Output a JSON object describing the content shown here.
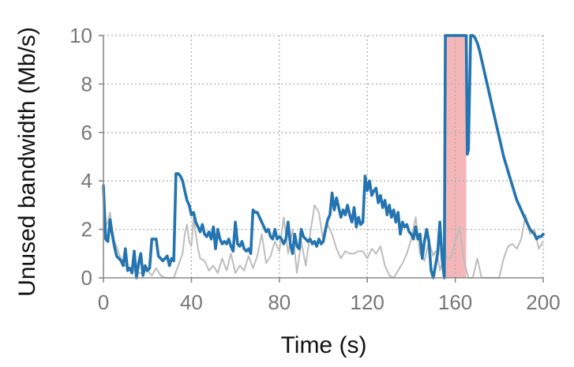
{
  "chart_data": {
    "type": "line",
    "xlabel": "Time (s)",
    "ylabel": "Unused bandwidth (Mb/s)",
    "xlim": [
      0,
      200
    ],
    "ylim": [
      0,
      10
    ],
    "xticks": [
      0,
      40,
      80,
      120,
      160,
      200
    ],
    "yticks": [
      0,
      2,
      4,
      6,
      8,
      10
    ],
    "xtick_labels": [
      "0",
      "40",
      "80",
      "120",
      "160",
      "200"
    ],
    "ytick_labels": [
      "0",
      "2",
      "4",
      "6",
      "8",
      "10"
    ],
    "grid": true,
    "highlight_span": {
      "x": [
        155,
        165
      ],
      "color": "#f4b6b8"
    },
    "colors": {
      "primary": "#2374b0",
      "secondary": "#bdbdbd"
    },
    "series": [
      {
        "color": "#bdbdbd",
        "x": [
          0,
          2,
          3,
          4,
          5,
          6,
          7,
          8,
          9,
          10,
          12,
          14,
          16,
          18,
          20,
          22,
          24,
          26,
          28,
          30,
          32,
          34,
          36,
          37,
          38,
          39,
          40,
          41,
          42,
          43,
          44,
          46,
          48,
          50,
          52,
          54,
          56,
          58,
          60,
          62,
          64,
          66,
          68,
          70,
          72,
          74,
          76,
          78,
          80,
          82,
          84,
          86,
          88,
          90,
          92,
          94,
          96,
          98,
          100,
          102,
          104,
          106,
          108,
          110,
          112,
          114,
          116,
          118,
          120,
          122,
          124,
          126,
          128,
          130,
          132,
          134,
          136,
          138,
          140,
          142,
          144,
          146,
          148,
          150,
          151,
          152,
          153,
          154,
          155,
          156,
          158,
          160,
          162,
          164,
          166,
          168,
          170,
          172,
          174,
          176,
          178,
          180,
          182,
          184,
          186,
          188,
          190,
          192,
          194,
          196,
          198,
          200
        ],
        "y": [
          2.0,
          2.3,
          2.7,
          2.0,
          1.5,
          1.3,
          1.0,
          0.8,
          0.6,
          0.5,
          0.4,
          0.3,
          0.2,
          0.2,
          0.3,
          0.1,
          0.4,
          0.1,
          0.0,
          0.0,
          0.0,
          0.5,
          1.0,
          1.8,
          2.2,
          1.5,
          1.3,
          2.5,
          1.8,
          1.2,
          0.8,
          0.7,
          0.3,
          0.5,
          0.2,
          0.8,
          0.3,
          1.0,
          0.2,
          0.5,
          0.3,
          0.9,
          0.4,
          0.9,
          1.8,
          0.6,
          0.9,
          1.5,
          1.1,
          2.5,
          1.0,
          2.0,
          0.2,
          1.5,
          0.5,
          1.8,
          3.0,
          2.7,
          1.5,
          2.2,
          1.8,
          1.2,
          0.8,
          1.1,
          1.0,
          1.0,
          1.1,
          1.1,
          0.8,
          1.2,
          1.0,
          1.3,
          0.5,
          0.1,
          0.0,
          0.3,
          0.6,
          1.0,
          1.6,
          2.5,
          1.0,
          0.7,
          1.5,
          0.9,
          1.1,
          0.9,
          0.3,
          0.6,
          1.4,
          0.8,
          0.8,
          1.5,
          2.1,
          0.7,
          0.0,
          0.0,
          0.8,
          0.0,
          0.0,
          0.0,
          0.0,
          0.0,
          0.8,
          1.3,
          1.4,
          1.2,
          1.6,
          2.6,
          1.8,
          2.0,
          1.2,
          1.5
        ]
      },
      {
        "color": "#2374b0",
        "x": [
          0,
          1,
          2,
          3,
          4,
          5,
          6,
          7,
          8,
          9,
          10,
          11,
          12,
          13,
          14,
          15,
          16,
          17,
          18,
          19,
          20,
          21,
          22,
          23,
          24,
          25,
          26,
          27,
          28,
          29,
          30,
          31,
          32,
          33,
          34,
          35,
          36,
          37,
          38,
          39,
          40,
          41,
          42,
          43,
          44,
          45,
          46,
          47,
          48,
          49,
          50,
          51,
          52,
          53,
          54,
          55,
          56,
          57,
          58,
          59,
          60,
          61,
          62,
          63,
          64,
          65,
          66,
          67,
          68,
          69,
          70,
          71,
          72,
          73,
          74,
          75,
          76,
          77,
          78,
          79,
          80,
          81,
          82,
          83,
          84,
          85,
          86,
          87,
          88,
          89,
          90,
          91,
          92,
          93,
          94,
          95,
          96,
          97,
          98,
          99,
          100,
          101,
          102,
          103,
          104,
          105,
          106,
          107,
          108,
          109,
          110,
          111,
          112,
          113,
          114,
          115,
          116,
          117,
          118,
          119,
          120,
          121,
          122,
          123,
          124,
          125,
          126,
          127,
          128,
          129,
          130,
          131,
          132,
          133,
          134,
          135,
          136,
          137,
          138,
          139,
          140,
          141,
          142,
          143,
          144,
          145,
          146,
          147,
          148,
          149,
          150,
          151,
          152,
          153,
          154,
          155,
          155.5,
          156,
          157,
          158,
          159,
          160,
          161,
          162,
          163,
          164,
          165,
          165.5,
          166,
          167,
          168,
          169,
          170,
          171,
          172,
          173,
          174,
          175,
          176,
          177,
          178,
          179,
          180,
          181,
          182,
          183,
          184,
          185,
          186,
          187,
          188,
          189,
          190,
          191,
          192,
          193,
          194,
          195,
          196,
          197,
          198,
          199,
          200
        ],
        "y": [
          3.8,
          1.6,
          1.5,
          2.4,
          1.8,
          1.3,
          0.9,
          0.8,
          0.7,
          0.5,
          1.2,
          0.3,
          0.4,
          0.2,
          1.1,
          0.0,
          0.6,
          1.0,
          0.1,
          0.5,
          0.3,
          0.4,
          1.6,
          1.6,
          1.6,
          0.9,
          0.8,
          0.7,
          0.8,
          0.9,
          0.5,
          0.8,
          0.7,
          4.3,
          4.3,
          4.2,
          4.0,
          3.6,
          3.2,
          3.0,
          2.6,
          2.7,
          2.3,
          2.1,
          1.9,
          2.2,
          1.8,
          1.7,
          1.9,
          1.6,
          2.1,
          1.2,
          2.0,
          1.6,
          1.4,
          1.5,
          1.4,
          1.6,
          1.3,
          1.1,
          2.3,
          1.4,
          1.3,
          1.5,
          1.2,
          1.1,
          1.2,
          1.0,
          2.8,
          2.7,
          2.7,
          2.5,
          2.3,
          2.1,
          1.9,
          2.0,
          1.7,
          1.6,
          2.0,
          1.6,
          1.7,
          1.6,
          1.4,
          1.6,
          2.3,
          1.4,
          1.0,
          1.8,
          1.3,
          1.2,
          2.0,
          1.7,
          1.6,
          1.5,
          1.6,
          1.4,
          1.5,
          1.3,
          1.6,
          1.4,
          1.5,
          2.0,
          2.4,
          2.6,
          3.5,
          2.8,
          3.3,
          2.9,
          2.5,
          2.8,
          2.6,
          3.0,
          2.6,
          2.3,
          2.9,
          2.1,
          2.5,
          2.2,
          2.3,
          4.2,
          3.6,
          4.0,
          3.4,
          3.6,
          3.7,
          3.1,
          3.4,
          2.9,
          3.2,
          2.6,
          3.0,
          2.5,
          2.8,
          2.3,
          2.7,
          1.8,
          2.3,
          2.1,
          2.2,
          1.9,
          1.8,
          1.6,
          2.1,
          1.6,
          1.8,
          0.8,
          1.5,
          2.0,
          1.5,
          0.3,
          0.0,
          0.5,
          1.0,
          2.3,
          0.8,
          0.0,
          10.0,
          10.0,
          10.0,
          10.0,
          10.0,
          10.0,
          10.0,
          10.0,
          10.0,
          10.0,
          10.0,
          5.1,
          5.3,
          10.0,
          10.0,
          9.9,
          9.7,
          9.4,
          9.0,
          8.6,
          8.2,
          7.8,
          7.4,
          7.0,
          6.6,
          6.2,
          5.8,
          5.4,
          5.0,
          4.7,
          4.4,
          4.1,
          3.8,
          3.5,
          3.2,
          3.0,
          2.8,
          2.6,
          2.4,
          2.2,
          2.0,
          1.9,
          1.8,
          1.6,
          1.7,
          1.7,
          1.8
        ]
      }
    ]
  }
}
